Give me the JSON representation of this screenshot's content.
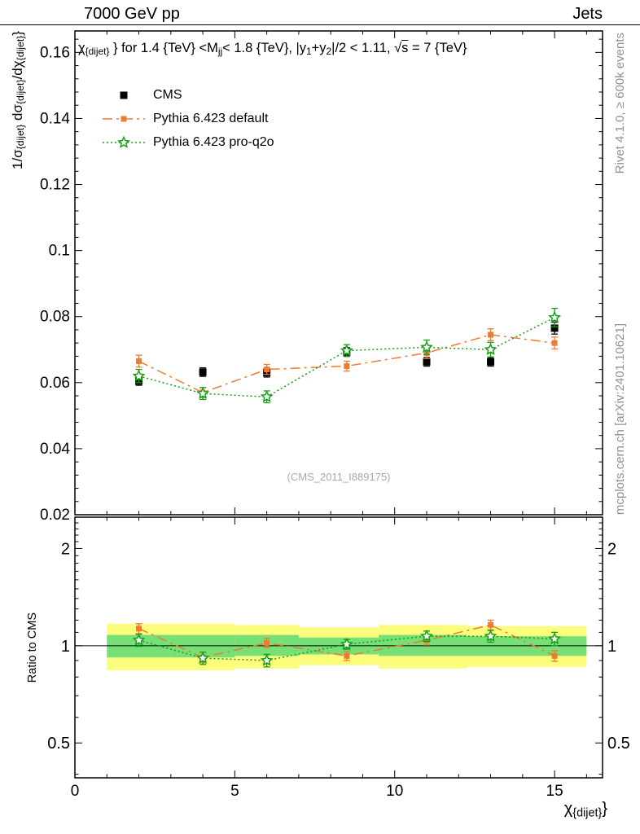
{
  "header": {
    "left": "7000 GeV pp",
    "right": "Jets"
  },
  "title_rich": [
    {
      "t": "χ"
    },
    {
      "t": "{dijet}",
      "sub": true
    },
    {
      "t": " } for 1.4 {TeV} <M"
    },
    {
      "t": "jj",
      "sub": true
    },
    {
      "t": "< 1.8 {TeV}, |y"
    },
    {
      "t": "1",
      "sub": true
    },
    {
      "t": "+y"
    },
    {
      "t": "2",
      "sub": true
    },
    {
      "t": "|/2 < 1.11, "
    },
    {
      "t": "√"
    },
    {
      "t": "s",
      "over": true
    },
    {
      "t": " = 7 {TeV}"
    }
  ],
  "ylabel_rich": [
    {
      "t": "1/σ"
    },
    {
      "t": "{dijet}",
      "sub": true
    },
    {
      "t": " dσ"
    },
    {
      "t": "{dijet}",
      "sub": true
    },
    {
      "t": "/dχ"
    },
    {
      "t": "{dijet}",
      "sub": true
    },
    {
      "t": "}"
    }
  ],
  "xlabel_rich": [
    {
      "t": "χ"
    },
    {
      "t": "{dijet}",
      "sub": true
    },
    {
      "t": "}"
    }
  ],
  "ratio_label": "Ratio to CMS",
  "watermark": "(CMS_2011_I889175)",
  "side_notes": {
    "top": "Rivet 4.1.0, ≥ 600k events",
    "bottom": "mcplots.cern.ch [arXiv:2401.10621]"
  },
  "legend": [
    {
      "label": "CMS"
    },
    {
      "label": "Pythia 6.423 default"
    },
    {
      "label": "Pythia 6.423 pro-q2o"
    }
  ],
  "chart_data": {
    "type": "line",
    "title": "chi_{dijet} for 1.4 TeV < Mjj < 1.8 TeV, |y1+y2|/2 < 1.11, sqrt(s) = 7 TeV",
    "xlabel": "χ_{dijet}",
    "ylabel": "1/σ_{dijet} dσ_{dijet}/dχ_{dijet}",
    "xlim": [
      0,
      16.5
    ],
    "ylim": [
      0.02,
      0.1665
    ],
    "x": [
      2,
      4,
      6,
      8.5,
      11,
      13,
      15
    ],
    "series": [
      {
        "name": "CMS",
        "color": "#000000",
        "marker": "square",
        "line": "none",
        "values": [
          0.0605,
          0.0632,
          0.063,
          0.0693,
          0.0663,
          0.0663,
          0.0765
        ],
        "errors": [
          0.0013,
          0.0013,
          0.0013,
          0.0013,
          0.0013,
          0.0013,
          0.0018
        ]
      },
      {
        "name": "Pythia 6.423 default",
        "color": "#ed7c31",
        "marker": "square",
        "line": "dashdot",
        "values": [
          0.0665,
          0.057,
          0.064,
          0.065,
          0.069,
          0.0745,
          0.072
        ],
        "errors": [
          0.0018,
          0.0015,
          0.0015,
          0.0015,
          0.0017,
          0.0018,
          0.0018
        ]
      },
      {
        "name": "Pythia 6.423 pro-q2o",
        "color": "#169e16",
        "marker": "star",
        "line": "dotted",
        "values": [
          0.062,
          0.0567,
          0.0557,
          0.0697,
          0.0707,
          0.07,
          0.0797
        ],
        "errors": [
          0.002,
          0.0018,
          0.0018,
          0.0018,
          0.0022,
          0.0022,
          0.0028
        ]
      }
    ],
    "xticks": {
      "values": [
        0,
        5,
        10,
        15
      ],
      "labels": [
        "0",
        "5",
        "10",
        "15"
      ],
      "minor_step": 1
    },
    "yticks": {
      "values": [
        0.02,
        0.04,
        0.06,
        0.08,
        0.1,
        0.12,
        0.14,
        0.16
      ],
      "labels": [
        "0.02",
        "0.04",
        "0.06",
        "0.08",
        "0.1",
        "0.12",
        "0.14",
        "0.16"
      ],
      "minor_step": 0.004
    },
    "ratio": {
      "label": "Ratio to CMS",
      "scale": "log",
      "ylim": [
        0.39,
        2.5
      ],
      "ref_line": 1,
      "yticks": {
        "values": [
          0.5,
          1,
          2
        ],
        "labels": [
          "0.5",
          "1",
          "2"
        ],
        "minors": [
          0.4,
          0.6,
          0.7,
          0.8,
          0.9,
          1.1,
          1.2,
          1.3,
          1.4,
          1.5,
          1.6,
          1.7,
          1.8,
          1.9,
          2.1,
          2.2,
          2.3,
          2.4
        ]
      },
      "series": [
        {
          "name": "Pythia 6.423 default",
          "color": "#ed7c31",
          "marker": "square",
          "line": "dashdot",
          "values": [
            1.13,
            0.92,
            1.02,
            0.93,
            1.04,
            1.16,
            0.93
          ],
          "errors": [
            0.04,
            0.035,
            0.035,
            0.03,
            0.035,
            0.04,
            0.035
          ]
        },
        {
          "name": "Pythia 6.423 pro-q2o",
          "color": "#169e16",
          "marker": "star",
          "line": "dotted",
          "values": [
            1.04,
            0.915,
            0.9,
            1.01,
            1.07,
            1.07,
            1.05
          ],
          "errors": [
            0.045,
            0.04,
            0.04,
            0.035,
            0.04,
            0.045,
            0.05
          ]
        }
      ],
      "bands": {
        "yellow_color": "#fcfc7d",
        "green_color": "#76df76",
        "segments": [
          {
            "x0": 1,
            "x1": 3,
            "yellow": [
              0.84,
              1.17
            ],
            "green": [
              0.92,
              1.08
            ]
          },
          {
            "x0": 3,
            "x1": 5,
            "yellow": [
              0.84,
              1.17
            ],
            "green": [
              0.92,
              1.08
            ]
          },
          {
            "x0": 5,
            "x1": 7,
            "yellow": [
              0.85,
              1.16
            ],
            "green": [
              0.93,
              1.08
            ]
          },
          {
            "x0": 7,
            "x1": 9.5,
            "yellow": [
              0.87,
              1.14
            ],
            "green": [
              0.94,
              1.06
            ]
          },
          {
            "x0": 9.5,
            "x1": 12.25,
            "yellow": [
              0.85,
              1.16
            ],
            "green": [
              0.93,
              1.08
            ]
          },
          {
            "x0": 12.25,
            "x1": 14,
            "yellow": [
              0.86,
              1.15
            ],
            "green": [
              0.93,
              1.07
            ]
          },
          {
            "x0": 14,
            "x1": 16,
            "yellow": [
              0.86,
              1.15
            ],
            "green": [
              0.93,
              1.07
            ]
          }
        ]
      }
    }
  }
}
